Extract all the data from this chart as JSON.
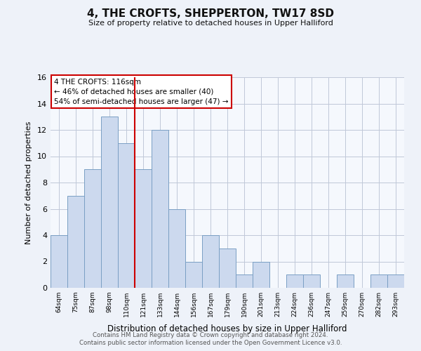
{
  "title": "4, THE CROFTS, SHEPPERTON, TW17 8SD",
  "subtitle": "Size of property relative to detached houses in Upper Halliford",
  "xlabel": "Distribution of detached houses by size in Upper Halliford",
  "ylabel": "Number of detached properties",
  "bin_labels": [
    "64sqm",
    "75sqm",
    "87sqm",
    "98sqm",
    "110sqm",
    "121sqm",
    "133sqm",
    "144sqm",
    "156sqm",
    "167sqm",
    "179sqm",
    "190sqm",
    "201sqm",
    "213sqm",
    "224sqm",
    "236sqm",
    "247sqm",
    "259sqm",
    "270sqm",
    "282sqm",
    "293sqm"
  ],
  "bar_heights": [
    4,
    7,
    9,
    13,
    11,
    9,
    12,
    6,
    2,
    4,
    3,
    1,
    2,
    0,
    1,
    1,
    0,
    1,
    0,
    1,
    1
  ],
  "bar_color": "#ccd9ee",
  "bar_edge_color": "#7a9fc4",
  "vline_x_idx": 4.5,
  "vline_color": "#cc0000",
  "annotation_line1": "4 THE CROFTS: 116sqm",
  "annotation_line2": "← 46% of detached houses are smaller (40)",
  "annotation_line3": "54% of semi-detached houses are larger (47) →",
  "annotation_box_color": "#ffffff",
  "annotation_box_edge": "#cc0000",
  "ylim": [
    0,
    16
  ],
  "yticks": [
    0,
    2,
    4,
    6,
    8,
    10,
    12,
    14,
    16
  ],
  "footer1": "Contains HM Land Registry data © Crown copyright and database right 2024.",
  "footer2": "Contains public sector information licensed under the Open Government Licence v3.0.",
  "bg_color": "#eef2f9",
  "plot_bg_color": "#f5f8fd"
}
